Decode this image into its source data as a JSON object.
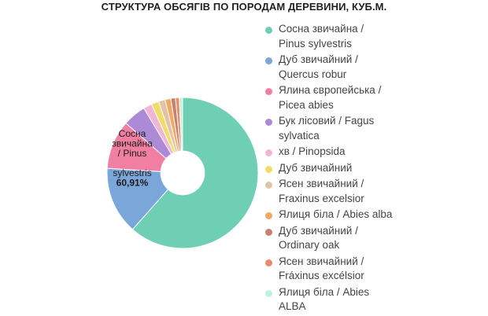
{
  "chart_data": {
    "type": "pie",
    "title": "СТРУКТУРА ОБСЯГІВ ПО ПОРОДАМ ДЕРЕВИНИ, КУБ.М.",
    "series": [
      {
        "name": "Сосна звичайна / Pinus sylvestris",
        "legend_lines": [
          "Сосна звичайна /",
          "Pinus sylvestris"
        ],
        "value": 60.91,
        "color": "#6fcfb5"
      },
      {
        "name": "Дуб звичайний / Quercus robur",
        "legend_lines": [
          "Дуб звичайний /",
          "Quercus robur"
        ],
        "value": 14.3,
        "color": "#7ba6da"
      },
      {
        "name": "Ялина європейська / Picea abies",
        "legend_lines": [
          "Ялина європейська /",
          "Picea abies"
        ],
        "value": 10.4,
        "color": "#f07fa3"
      },
      {
        "name": "Бук лісовий / Fagus sylvatica",
        "legend_lines": [
          "Бук лісовий / Fagus",
          "sylvatica"
        ],
        "value": 4.9,
        "color": "#ad8ad6"
      },
      {
        "name": "хв / Pinopsida",
        "legend_lines": [
          "хв / Pinopsida"
        ],
        "value": 1.8,
        "color": "#f1b6d5"
      },
      {
        "name": "Дуб звичайний",
        "legend_lines": [
          "Дуб звичайний"
        ],
        "value": 1.6,
        "color": "#f2dc68"
      },
      {
        "name": "Ясен звичайний / Fraxinus excelsior",
        "legend_lines": [
          "Ясен звичайний /",
          "Fraxinus excelsior"
        ],
        "value": 1.4,
        "color": "#e2c3a8"
      },
      {
        "name": "Ялиця біла / Abies alba",
        "legend_lines": [
          "Ялиця біла / Abies alba"
        ],
        "value": 1.2,
        "color": "#f3a863"
      },
      {
        "name": "Дуб звичайний / Ordinary oak",
        "legend_lines": [
          "Дуб звичайний /",
          "Ordinary oak"
        ],
        "value": 1.0,
        "color": "#c9806f"
      },
      {
        "name": "Ясен звичайний / Fráxinus excélsior",
        "legend_lines": [
          "Ясен звичайний /",
          "Fráxinus excélsior"
        ],
        "value": 0.8,
        "color": "#ee8a6c"
      },
      {
        "name": "Ялиця біла / Abies ALBA",
        "legend_lines": [
          "Ялиця біла / Abies",
          "ALBA"
        ],
        "value": 0.69,
        "color": "#bff1df"
      }
    ],
    "slice_label": {
      "lines": [
        "Сосна",
        "звичайна",
        "/ Pinus",
        "",
        "sylvestris"
      ],
      "value": "60,91%"
    },
    "inner_radius_fraction": 0.29,
    "legend_position": "right"
  }
}
